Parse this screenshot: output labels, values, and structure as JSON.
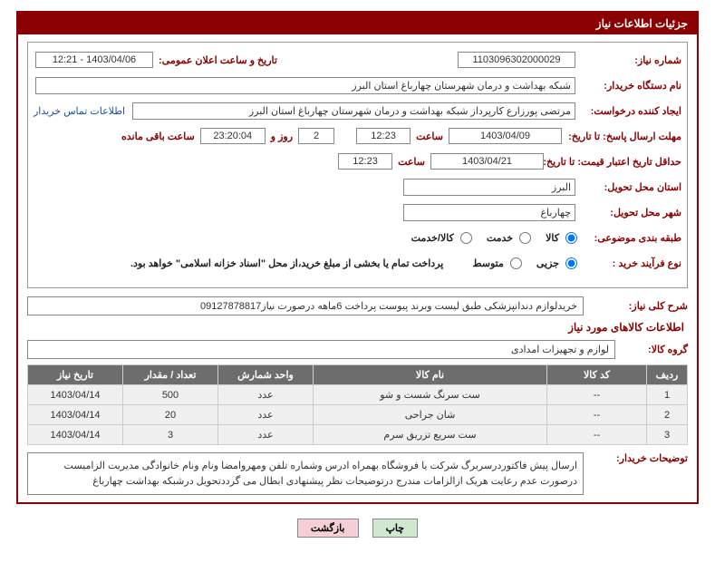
{
  "panel": {
    "title": "جزئیات اطلاعات نیاز"
  },
  "labels": {
    "need_no": "شماره نیاز:",
    "announce_dt": "تاریخ و ساعت اعلان عمومی:",
    "buyer_org": "نام دستگاه خریدار:",
    "requester": "ایجاد کننده درخواست:",
    "contact_link": "اطلاعات تماس خریدار",
    "reply_deadline": "مهلت ارسال پاسخ: تا تاریخ:",
    "hour": "ساعت",
    "days_and": "روز و",
    "hours_remaining": "ساعت باقی مانده",
    "min_validity": "حداقل تاریخ اعتبار قیمت: تا تاریخ:",
    "delivery_province": "استان محل تحویل:",
    "delivery_city": "شهر محل تحویل:",
    "category": "طبقه بندی موضوعی:",
    "purchase_type": "نوع فرآیند خرید :",
    "payment_note": "پرداخت تمام یا بخشی از مبلغ خرید،از محل \"اسناد خزانه اسلامی\" خواهد بود.",
    "overall_title": "شرح کلی نیاز:",
    "items_section": "اطلاعات کالاهای مورد نیاز",
    "goods_group": "گروه کالا:",
    "buyer_notes": "توضیحات خریدار:"
  },
  "values": {
    "need_no": "1103096302000029",
    "announce_dt": "1403/04/06 - 12:21",
    "buyer_org": "شبکه بهداشت و درمان شهرستان چهارباغ استان البرز",
    "requester": "مرتضی پورزارع کارپرداز شبکه بهداشت و درمان شهرستان چهارباغ استان البرز",
    "reply_date": "1403/04/09",
    "reply_time": "12:23",
    "remain_days": "2",
    "remain_timer": "23:20:04",
    "min_validity_date": "1403/04/21",
    "min_validity_time": "12:23",
    "delivery_province": "البرز",
    "delivery_city": "چهارباغ",
    "overall": "خریدلوازم دندانپزشکی طبق لیست وبرند پیوست پرداخت 6ماهه درصورت نیاز09127878817",
    "goods_group": "لوازم و تجهیزات امدادی",
    "buyer_notes": "ارسال پیش فاکتوردرسربرگ شرکت یا فروشگاه بهمراه ادرس وشماره تلفن ومهروامضا ونام ونام خانوادگی مدیریت الزامیست درصورت عدم رعایت هریک ازالزامات مندرج درتوضیحات نظر پیشنهادی ابطال می گرددتحویل درشبکه بهداشت چهارباغ"
  },
  "category_options": {
    "goods": "کالا",
    "service": "خدمت",
    "both": "کالا/خدمت"
  },
  "purchase_options": {
    "partial": "جزیی",
    "medium": "متوسط"
  },
  "table": {
    "headers": {
      "row": "ردیف",
      "code": "کد کالا",
      "name": "نام کالا",
      "unit": "واحد شمارش",
      "qty": "تعداد / مقدار",
      "need_date": "تاریخ نیاز"
    },
    "rows": [
      {
        "row": "1",
        "code": "--",
        "name": "ست سرنگ شست و شو",
        "unit": "عدد",
        "qty": "500",
        "need_date": "1403/04/14"
      },
      {
        "row": "2",
        "code": "--",
        "name": "شان جراحی",
        "unit": "عدد",
        "qty": "20",
        "need_date": "1403/04/14"
      },
      {
        "row": "3",
        "code": "--",
        "name": "ست سریع تزریق سرم",
        "unit": "عدد",
        "qty": "3",
        "need_date": "1403/04/14"
      }
    ]
  },
  "buttons": {
    "print": "چاپ",
    "back": "بازگشت"
  },
  "col_widths": {
    "row": "45px",
    "code": "110px",
    "unit": "105px",
    "qty": "105px",
    "need_date": "105px"
  }
}
